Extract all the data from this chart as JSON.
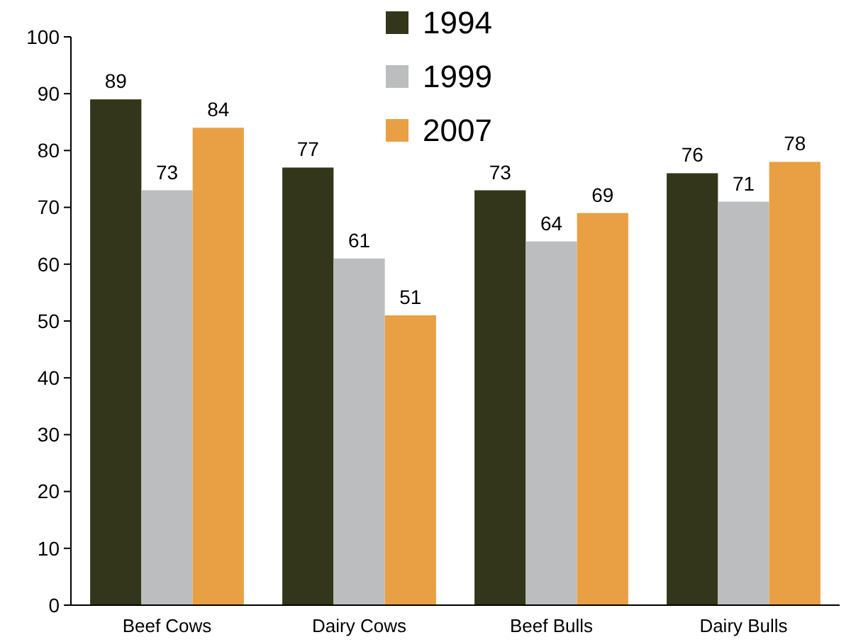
{
  "chart_data": {
    "type": "bar",
    "categories": [
      "Beef Cows",
      "Dairy Cows",
      "Beef Bulls",
      "Dairy Bulls"
    ],
    "series": [
      {
        "name": "1994",
        "color": "#34361b",
        "values": [
          89,
          77,
          73,
          76
        ]
      },
      {
        "name": "1999",
        "color": "#bcbdbf",
        "values": [
          73,
          61,
          64,
          71
        ]
      },
      {
        "name": "2007",
        "color": "#e9a045",
        "values": [
          84,
          51,
          69,
          78
        ]
      }
    ],
    "ylim": [
      0,
      100
    ],
    "yticks": [
      0,
      10,
      20,
      30,
      40,
      50,
      60,
      70,
      80,
      90,
      100
    ],
    "data_labels": true,
    "legend": "top",
    "grid": false
  }
}
